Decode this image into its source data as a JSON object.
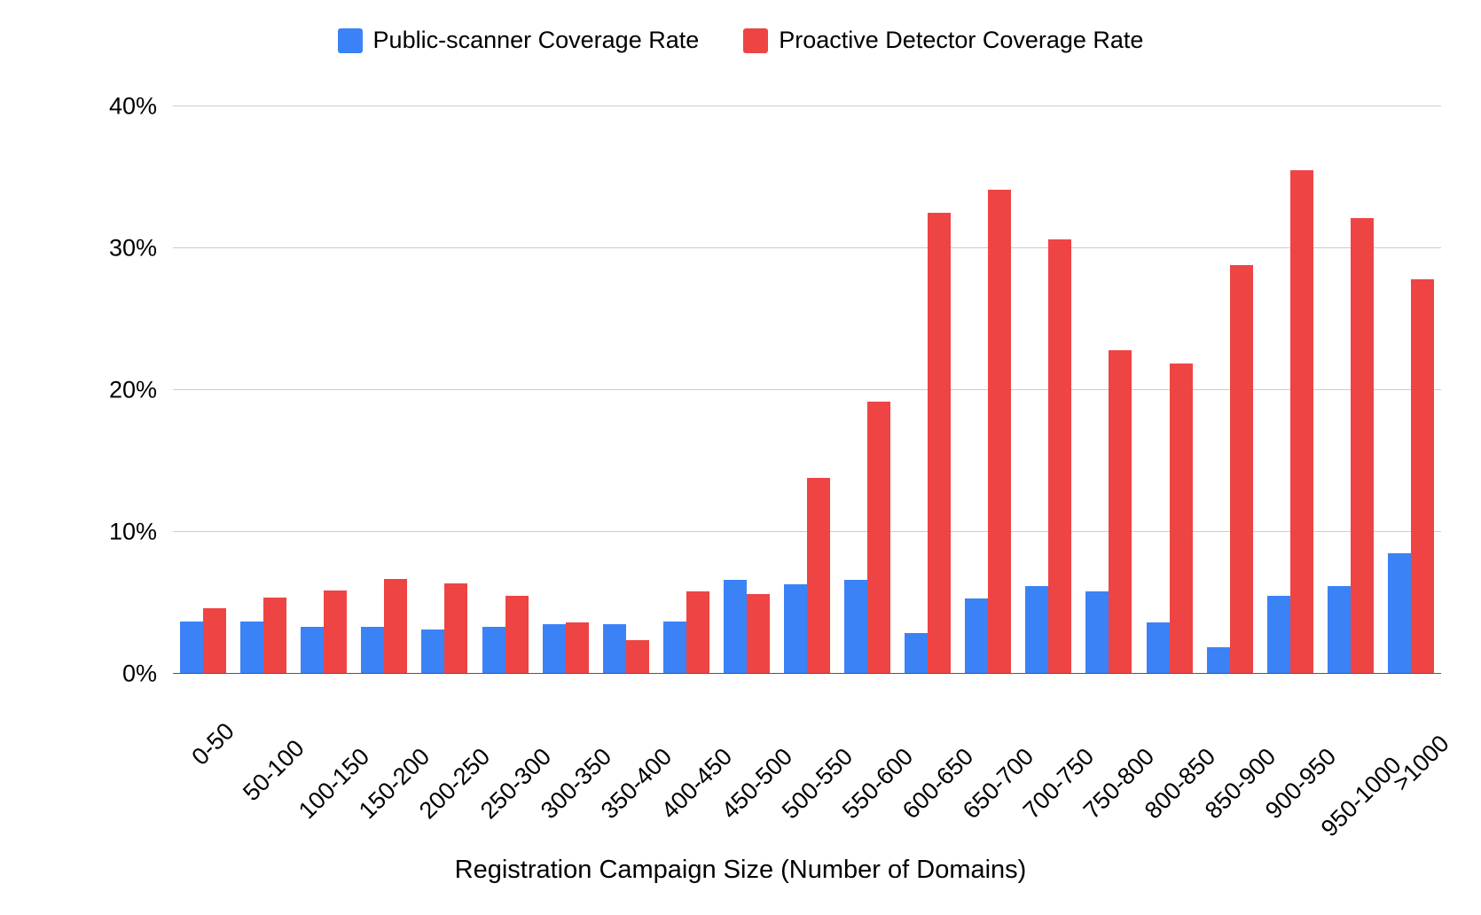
{
  "chart": {
    "type": "bar",
    "background_color": "#ffffff",
    "grid_color": "#cccccc",
    "baseline_color": "#555555",
    "text_color": "#000000",
    "legend_fontsize": 27,
    "tick_fontsize": 27,
    "axis_title_fontsize": 29,
    "x_axis_title": "Registration Campaign Size (Number of Domains)",
    "ylim": [
      0,
      40
    ],
    "ytick_step": 10,
    "ytick_labels": [
      "0%",
      "10%",
      "20%",
      "30%",
      "40%"
    ],
    "categories": [
      "0-50",
      "50-100",
      "100-150",
      "150-200",
      "200-250",
      "250-300",
      "300-350",
      "350-400",
      "400-450",
      "450-500",
      "500-550",
      "550-600",
      "600-650",
      "650-700",
      "700-750",
      "750-800",
      "800-850",
      "850-900",
      "900-950",
      "950-1000",
      ">1000"
    ],
    "series": [
      {
        "name": "Public-scanner Coverage Rate",
        "color": "#3b82f6",
        "values": [
          3.7,
          3.7,
          3.3,
          3.3,
          3.1,
          3.3,
          3.5,
          3.5,
          3.7,
          6.6,
          6.3,
          6.6,
          2.9,
          5.3,
          6.2,
          5.8,
          3.6,
          1.9,
          5.5,
          6.2,
          8.5
        ]
      },
      {
        "name": "Proactive Detector Coverage Rate",
        "color": "#ef4444",
        "values": [
          4.6,
          5.4,
          5.9,
          6.7,
          6.4,
          5.5,
          3.6,
          2.4,
          5.8,
          5.6,
          13.8,
          19.2,
          32.5,
          34.1,
          30.6,
          22.8,
          21.9,
          28.8,
          35.5,
          32.1,
          27.8
        ]
      }
    ]
  }
}
